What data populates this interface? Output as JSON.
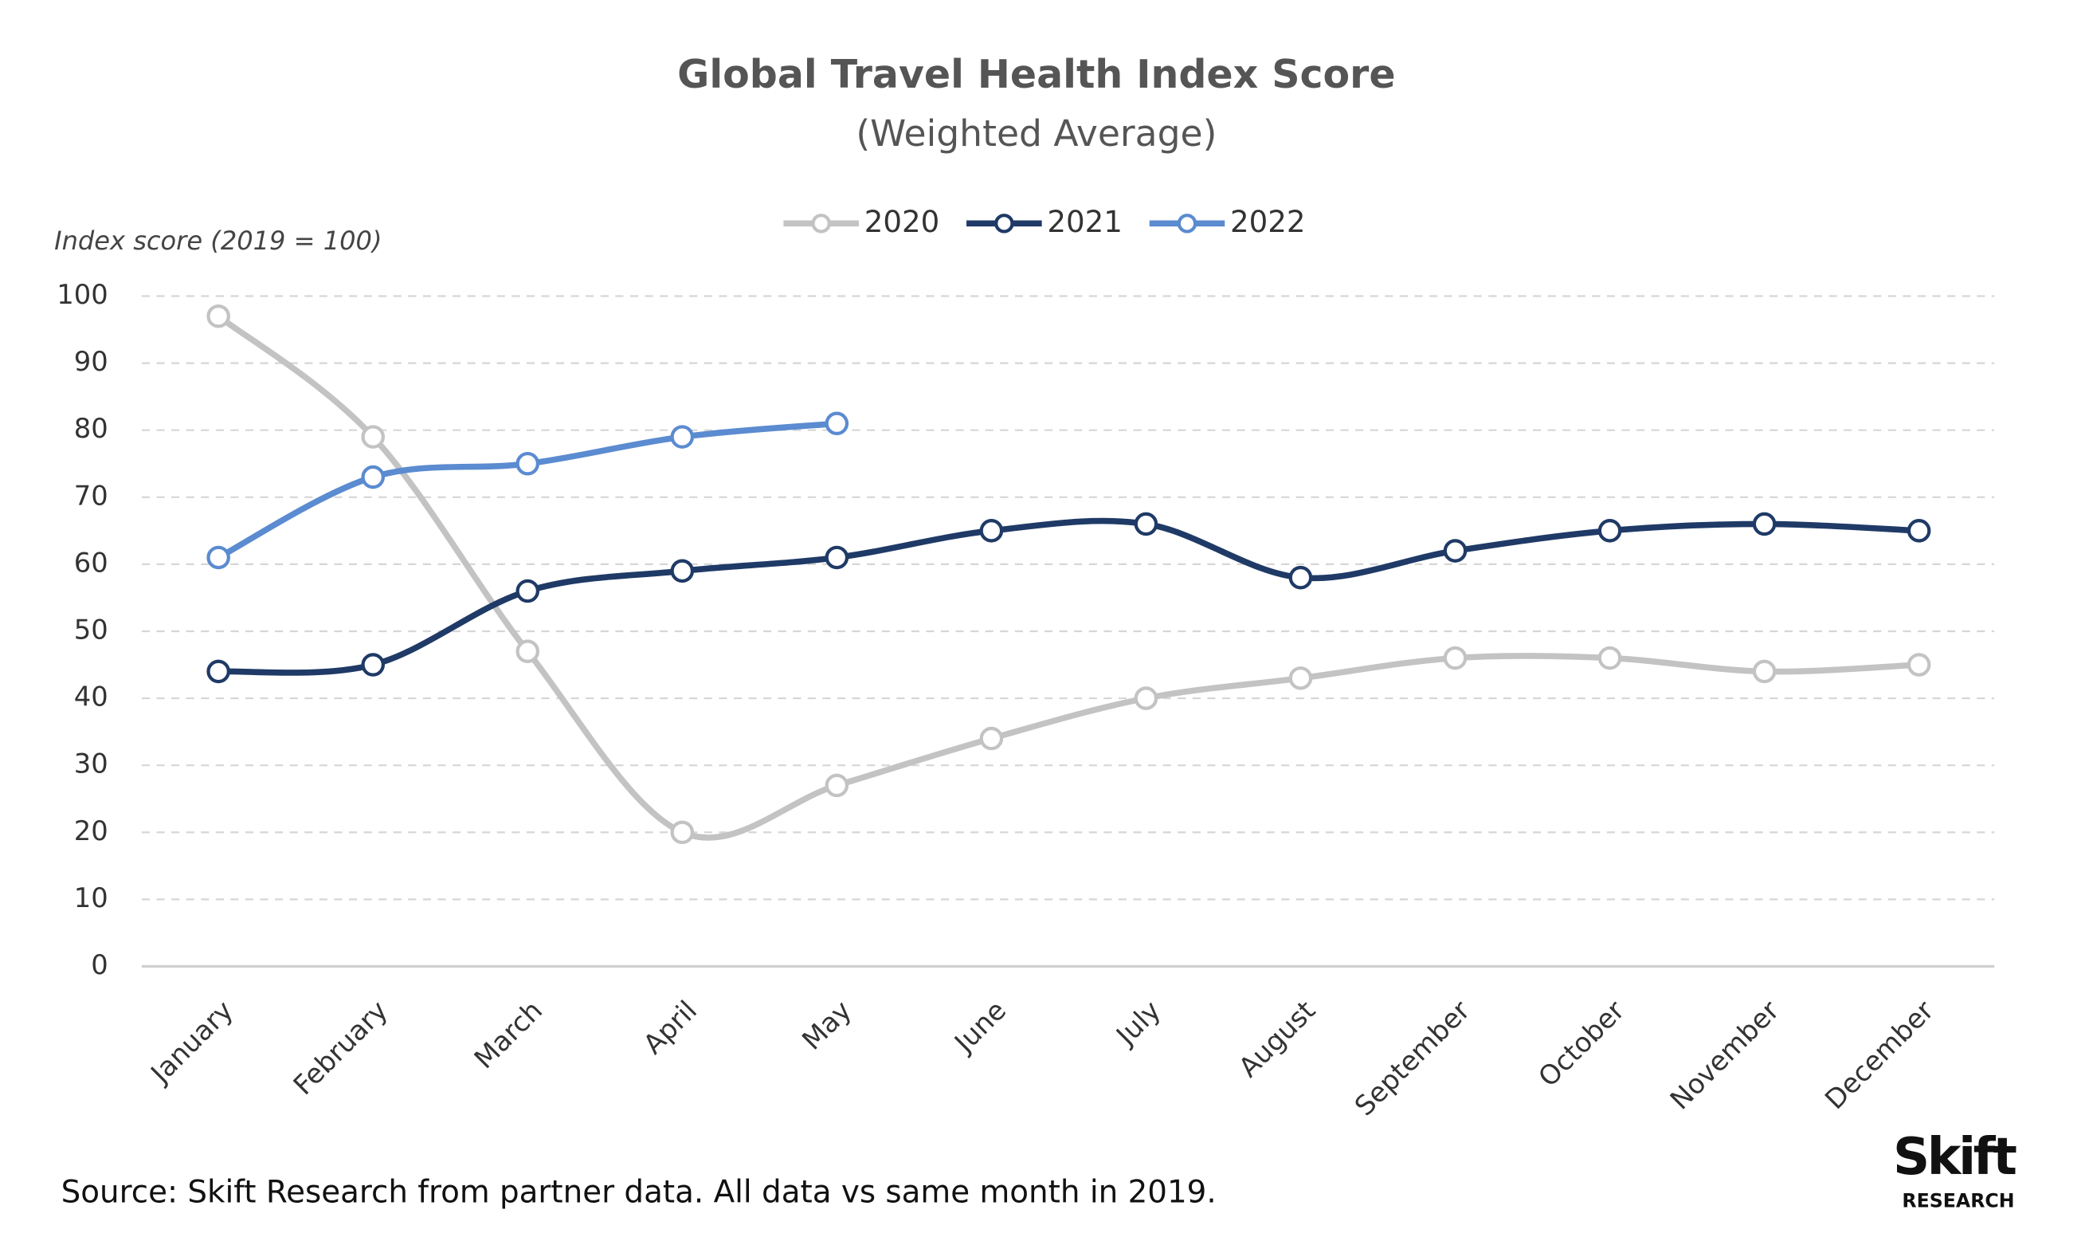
{
  "chart_data": {
    "type": "line",
    "title": "Global Travel Health Index Score",
    "subtitle": "(Weighted Average)",
    "y_axis_label": "Index score (2019 = 100)",
    "source": "Source: Skift Research from partner data. All data vs same month in 2019.",
    "logo": {
      "name": "Skift",
      "tagline": "RESEARCH"
    },
    "categories": [
      "January",
      "February",
      "March",
      "April",
      "May",
      "June",
      "July",
      "August",
      "September",
      "October",
      "November",
      "December"
    ],
    "series": [
      {
        "name": "2020",
        "color": "#c3c3c3",
        "values": [
          97,
          79,
          47,
          20,
          27,
          34,
          40,
          43,
          46,
          46,
          44,
          45
        ]
      },
      {
        "name": "2021",
        "color": "#1f3a66",
        "values": [
          44,
          45,
          56,
          59,
          61,
          65,
          66,
          58,
          62,
          65,
          66,
          65
        ]
      },
      {
        "name": "2022",
        "color": "#5b8bd0",
        "values": [
          61,
          73,
          75,
          79,
          81,
          null,
          null,
          null,
          null,
          null,
          null,
          null
        ]
      }
    ],
    "ylim": [
      0,
      100
    ],
    "yticks": [
      0,
      10,
      20,
      30,
      40,
      50,
      60,
      70,
      80,
      90,
      100
    ],
    "grid": true,
    "legend": "top"
  }
}
